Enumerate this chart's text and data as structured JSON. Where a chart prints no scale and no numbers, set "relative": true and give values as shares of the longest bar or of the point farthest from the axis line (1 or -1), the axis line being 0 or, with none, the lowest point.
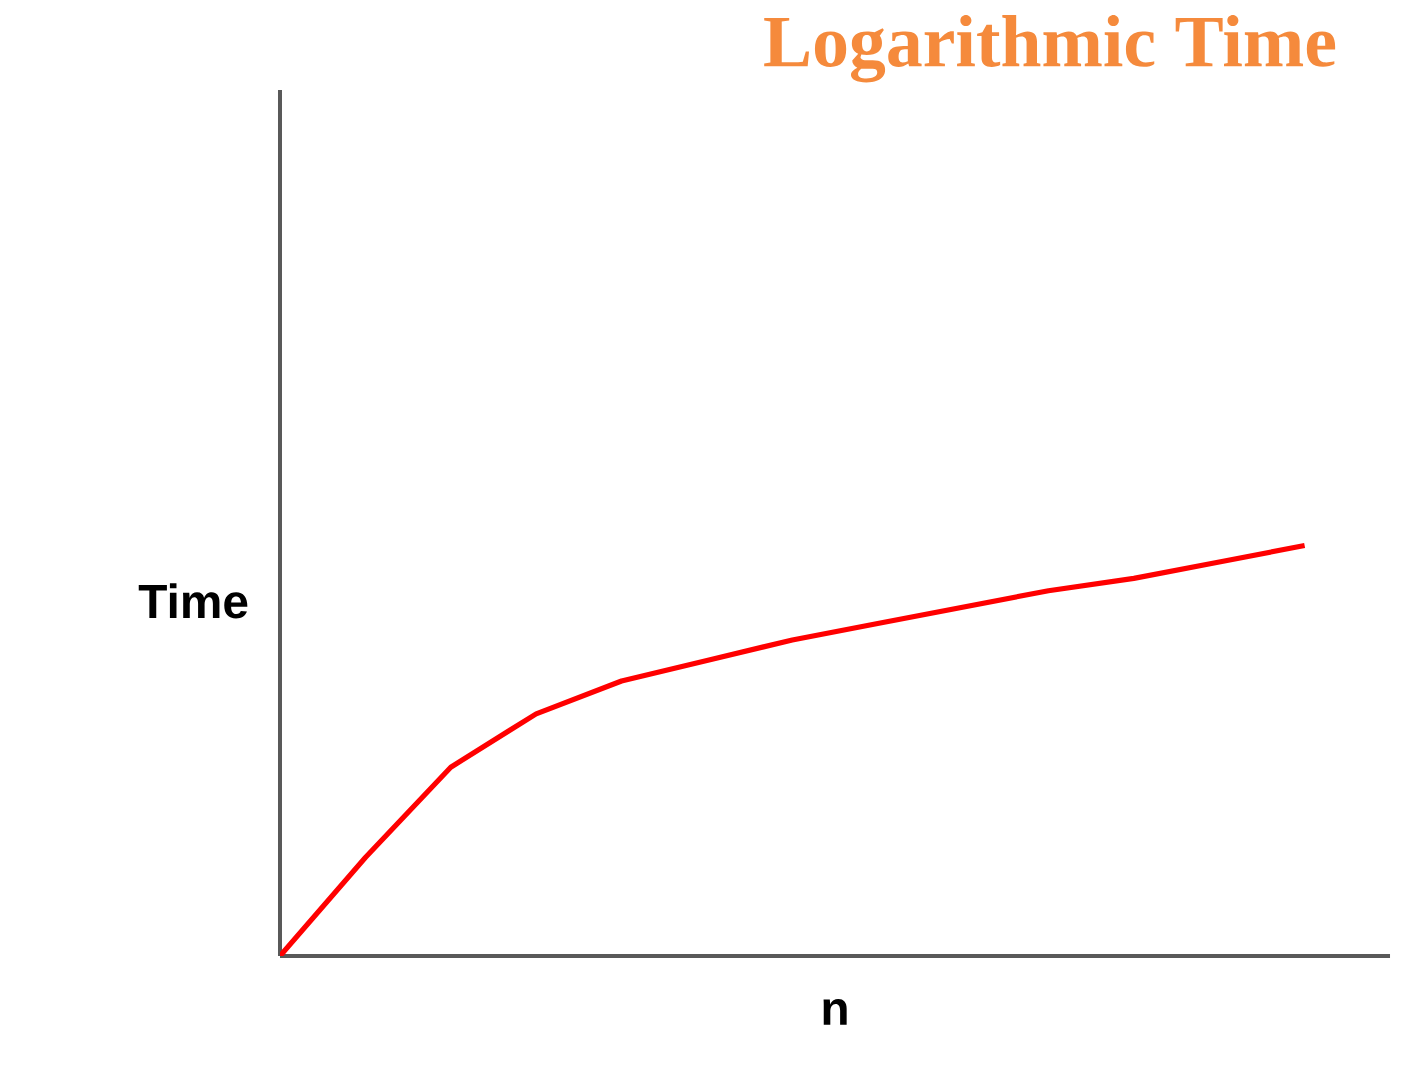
{
  "chart_data": {
    "type": "line",
    "title": "Logarithmic Time",
    "xlabel": "n",
    "ylabel": "Time",
    "relative": true,
    "categories": [
      null,
      null,
      null,
      null,
      null,
      null,
      null,
      null,
      null,
      null,
      null,
      null,
      null
    ],
    "series": [
      {
        "color": "#ff0000",
        "values": [
          0,
          0.24,
          0.46,
          0.59,
          0.67,
          0.72,
          0.77,
          0.81,
          0.85,
          0.89,
          0.92,
          0.96,
          1
        ]
      }
    ]
  }
}
